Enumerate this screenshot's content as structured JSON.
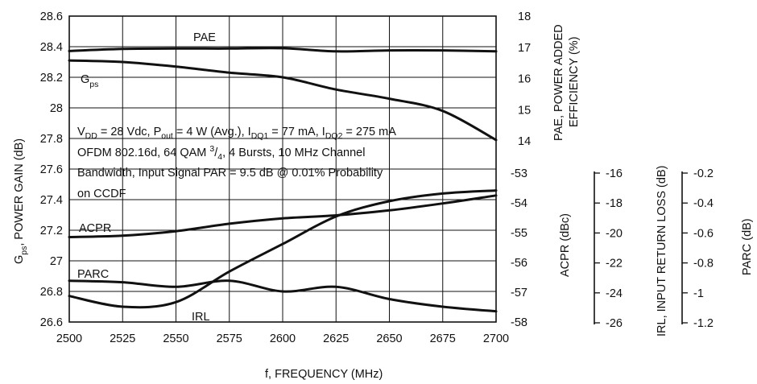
{
  "chart_data": {
    "type": "line",
    "x_axis": {
      "label": "f, FREQUENCY (MHz)",
      "range": [
        2500,
        2700
      ],
      "ticks": [
        "2500",
        "2525",
        "2550",
        "2575",
        "2600",
        "2625",
        "2650",
        "2675",
        "2700"
      ]
    },
    "y_left": {
      "label_main": "G",
      "label_sub": "ps",
      "label_rest": ", POWER GAIN (dB)",
      "range": [
        26.6,
        28.6
      ],
      "ticks": [
        "26.6",
        "26.8",
        "27",
        "27.2",
        "27.4",
        "27.6",
        "27.8",
        "28",
        "28.2",
        "28.4",
        "28.6"
      ]
    },
    "y_right_pae": {
      "label_line1": "PAE, POWER ADDED",
      "label_line2": "EFFICIENCY (%)",
      "range": [
        14,
        18
      ],
      "ticks": [
        "14",
        "15",
        "16",
        "17",
        "18"
      ]
    },
    "y_right_acpr": {
      "label": "ACPR (dBc)",
      "range": [
        -58,
        -53
      ],
      "ticks": [
        "-53",
        "-54",
        "-55",
        "-56",
        "-57",
        "-58"
      ]
    },
    "y_irl": {
      "label": "IRL, INPUT RETURN LOSS (dB)",
      "range": [
        -26,
        -16
      ],
      "ticks": [
        "-16",
        "-18",
        "-20",
        "-22",
        "-24",
        "-26"
      ]
    },
    "y_parc": {
      "label": "PARC (dB)",
      "range": [
        -1.2,
        -0.2
      ],
      "ticks": [
        "-0.2",
        "-0.4",
        "-0.6",
        "-0.8",
        "-1",
        "-1.2"
      ]
    },
    "series": [
      {
        "name": "PAE",
        "axis": "pae",
        "x": [
          2500,
          2525,
          2550,
          2575,
          2600,
          2625,
          2650,
          2675,
          2700
        ],
        "y": [
          16.88,
          16.95,
          16.96,
          16.96,
          16.97,
          16.87,
          16.9,
          16.9,
          16.87
        ]
      },
      {
        "name": "Gps",
        "axis": "gain",
        "x": [
          2500,
          2525,
          2550,
          2575,
          2600,
          2625,
          2650,
          2675,
          2700
        ],
        "y": [
          28.31,
          28.3,
          28.27,
          28.23,
          28.2,
          28.12,
          28.06,
          27.98,
          27.79
        ]
      },
      {
        "name": "ACPR",
        "axis": "acpr",
        "x": [
          2500,
          2525,
          2550,
          2575,
          2600,
          2625,
          2650,
          2675,
          2700
        ],
        "y": [
          -55.15,
          -55.1,
          -54.95,
          -54.7,
          -54.52,
          -54.42,
          -54.25,
          -54.02,
          -53.75
        ]
      },
      {
        "name": "PARC",
        "axis": "gain",
        "x": [
          2500,
          2525,
          2550,
          2575,
          2600,
          2625,
          2650,
          2675,
          2700
        ],
        "y": [
          26.87,
          26.86,
          26.83,
          26.87,
          26.8,
          26.83,
          26.75,
          26.7,
          26.67
        ]
      },
      {
        "name": "IRL",
        "axis": "gain",
        "x": [
          2500,
          2525,
          2550,
          2575,
          2600,
          2625,
          2650,
          2675,
          2700
        ],
        "y": [
          26.77,
          26.7,
          26.73,
          26.93,
          27.11,
          27.29,
          27.39,
          27.44,
          27.46
        ]
      }
    ],
    "curve_labels": {
      "pae": "PAE",
      "gps_main": "G",
      "gps_sub": "ps",
      "acpr": "ACPR",
      "parc": "PARC",
      "irl": "IRL"
    },
    "annotation": {
      "line1": {
        "p1": "V",
        "s1": "DD",
        "p2": " = 28 Vdc, P",
        "s2": "out",
        "p3": " = 4 W (Avg.), I",
        "s3": "DQ1",
        "p4": " = 77 mA, I",
        "s4": "DQ2",
        "p5": " = 275 mA"
      },
      "line2": {
        "p1": "OFDM 802.16d, 64 QAM ",
        "sup": "3",
        "p2": "/",
        "sub": "4",
        "p3": ", 4 Bursts, 10 MHz Channel"
      },
      "line3": "Bandwidth, Input Signal PAR = 9.5 dB @ 0.01% Probability",
      "line4": "on CCDF"
    },
    "grid": true
  }
}
